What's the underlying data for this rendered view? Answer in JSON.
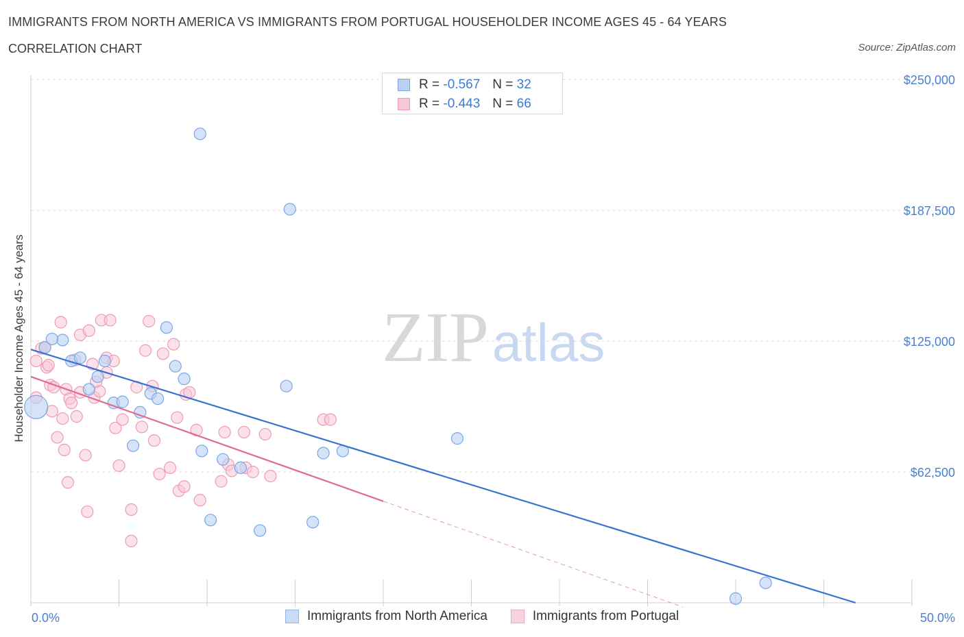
{
  "header": {
    "title": "IMMIGRANTS FROM NORTH AMERICA VS IMMIGRANTS FROM PORTUGAL HOUSEHOLDER INCOME AGES 45 - 64 YEARS",
    "subtitle": "CORRELATION CHART",
    "source": "Source: ZipAtlas.com"
  },
  "watermark": {
    "zip": "ZIP",
    "atlas": "atlas"
  },
  "legend": {
    "series_a": {
      "r_label": "R = ",
      "r_value": "-0.567",
      "n_label": "N = ",
      "n_value": "32"
    },
    "series_b": {
      "r_label": "R = ",
      "r_value": "-0.443",
      "n_label": "N = ",
      "n_value": "66"
    }
  },
  "colors": {
    "series_a_fill": "#b9d0f4",
    "series_a_stroke": "#7aa6e6",
    "series_a_line": "#3572d2",
    "series_b_fill": "#f8c8d8",
    "series_b_stroke": "#ee9ab6",
    "series_b_line": "#e06a92",
    "grid": "#dcdcdc",
    "tick_text": "#4a7fd0"
  },
  "chart_data": {
    "type": "scatter",
    "xlabel": "",
    "ylabel": "Householder Income Ages 45 - 64 years",
    "xlim": [
      0,
      50
    ],
    "ylim": [
      0,
      250000
    ],
    "x_tick_labels": [
      "0.0%",
      "50.0%"
    ],
    "y_ticks": [
      62500,
      125000,
      187500,
      250000
    ],
    "y_tick_labels": [
      "$62,500",
      "$125,000",
      "$187,500",
      "$250,000"
    ],
    "grid": "horizontal dashed",
    "legend_placement": "top-center and bottom",
    "series": [
      {
        "name": "Immigrants from North America",
        "r": -0.567,
        "n": 32,
        "trend": {
          "x": [
            0,
            46.8
          ],
          "y": [
            121000,
            0
          ]
        },
        "points": [
          {
            "x": 0.3,
            "y": 93500,
            "big": true
          },
          {
            "x": 0.8,
            "y": 122000
          },
          {
            "x": 1.8,
            "y": 125500
          },
          {
            "x": 1.2,
            "y": 126000
          },
          {
            "x": 2.3,
            "y": 115500
          },
          {
            "x": 2.8,
            "y": 117000
          },
          {
            "x": 3.3,
            "y": 102000
          },
          {
            "x": 3.8,
            "y": 108000
          },
          {
            "x": 4.2,
            "y": 115500
          },
          {
            "x": 4.7,
            "y": 95500
          },
          {
            "x": 5.2,
            "y": 96000
          },
          {
            "x": 5.8,
            "y": 75000
          },
          {
            "x": 6.2,
            "y": 91000
          },
          {
            "x": 6.8,
            "y": 100000
          },
          {
            "x": 7.2,
            "y": 97500
          },
          {
            "x": 7.7,
            "y": 131500
          },
          {
            "x": 8.2,
            "y": 113000
          },
          {
            "x": 8.7,
            "y": 107000
          },
          {
            "x": 9.6,
            "y": 224000
          },
          {
            "x": 9.7,
            "y": 72500
          },
          {
            "x": 10.2,
            "y": 39500
          },
          {
            "x": 10.9,
            "y": 68500
          },
          {
            "x": 11.9,
            "y": 64500
          },
          {
            "x": 13.0,
            "y": 34500
          },
          {
            "x": 14.5,
            "y": 103500
          },
          {
            "x": 14.7,
            "y": 188000
          },
          {
            "x": 16.0,
            "y": 38500
          },
          {
            "x": 16.6,
            "y": 71500
          },
          {
            "x": 17.7,
            "y": 72500
          },
          {
            "x": 24.2,
            "y": 78500
          },
          {
            "x": 40.0,
            "y": 2000
          },
          {
            "x": 41.7,
            "y": 9500
          }
        ]
      },
      {
        "name": "Immigrants from Portugal",
        "r": -0.443,
        "n": 66,
        "trend": {
          "x": [
            0,
            20.0
          ],
          "y": [
            108000,
            48500
          ]
        },
        "trend_extension": {
          "x": [
            20.0,
            37.0
          ],
          "y": [
            48500,
            -2000
          ]
        },
        "points": [
          {
            "x": 0.3,
            "y": 98000
          },
          {
            "x": 0.3,
            "y": 115500
          },
          {
            "x": 0.6,
            "y": 121500
          },
          {
            "x": 0.8,
            "y": 122000
          },
          {
            "x": 0.9,
            "y": 112500
          },
          {
            "x": 1.0,
            "y": 113500
          },
          {
            "x": 1.1,
            "y": 104000
          },
          {
            "x": 1.3,
            "y": 103000
          },
          {
            "x": 1.2,
            "y": 91500
          },
          {
            "x": 1.5,
            "y": 79000
          },
          {
            "x": 1.7,
            "y": 134000
          },
          {
            "x": 2.0,
            "y": 102000
          },
          {
            "x": 1.8,
            "y": 88000
          },
          {
            "x": 1.9,
            "y": 73000
          },
          {
            "x": 2.1,
            "y": 57500
          },
          {
            "x": 2.2,
            "y": 97500
          },
          {
            "x": 2.3,
            "y": 95500
          },
          {
            "x": 2.5,
            "y": 116000
          },
          {
            "x": 2.6,
            "y": 89000
          },
          {
            "x": 2.8,
            "y": 128000
          },
          {
            "x": 2.8,
            "y": 100500
          },
          {
            "x": 3.1,
            "y": 70500
          },
          {
            "x": 3.2,
            "y": 43500
          },
          {
            "x": 3.3,
            "y": 130000
          },
          {
            "x": 3.5,
            "y": 114000
          },
          {
            "x": 3.6,
            "y": 98000
          },
          {
            "x": 3.7,
            "y": 105500
          },
          {
            "x": 3.9,
            "y": 101000
          },
          {
            "x": 4.0,
            "y": 135000
          },
          {
            "x": 4.3,
            "y": 117000
          },
          {
            "x": 4.3,
            "y": 110000
          },
          {
            "x": 4.5,
            "y": 135000
          },
          {
            "x": 4.7,
            "y": 115500
          },
          {
            "x": 4.8,
            "y": 83500
          },
          {
            "x": 5.0,
            "y": 65500
          },
          {
            "x": 5.2,
            "y": 87500
          },
          {
            "x": 5.7,
            "y": 44500
          },
          {
            "x": 5.7,
            "y": 29500
          },
          {
            "x": 6.0,
            "y": 103000
          },
          {
            "x": 6.3,
            "y": 84000
          },
          {
            "x": 6.5,
            "y": 120500
          },
          {
            "x": 6.7,
            "y": 134500
          },
          {
            "x": 6.9,
            "y": 103500
          },
          {
            "x": 7.0,
            "y": 77500
          },
          {
            "x": 7.3,
            "y": 61500
          },
          {
            "x": 7.5,
            "y": 119000
          },
          {
            "x": 7.9,
            "y": 64500
          },
          {
            "x": 8.1,
            "y": 123500
          },
          {
            "x": 8.3,
            "y": 88500
          },
          {
            "x": 8.4,
            "y": 53500
          },
          {
            "x": 8.7,
            "y": 55500
          },
          {
            "x": 8.8,
            "y": 99500
          },
          {
            "x": 9.0,
            "y": 100500
          },
          {
            "x": 9.4,
            "y": 82500
          },
          {
            "x": 9.6,
            "y": 49000
          },
          {
            "x": 10.8,
            "y": 58000
          },
          {
            "x": 11.0,
            "y": 81500
          },
          {
            "x": 11.2,
            "y": 66000
          },
          {
            "x": 11.4,
            "y": 63000
          },
          {
            "x": 12.1,
            "y": 81500
          },
          {
            "x": 12.2,
            "y": 64500
          },
          {
            "x": 12.6,
            "y": 62500
          },
          {
            "x": 13.3,
            "y": 80500
          },
          {
            "x": 13.6,
            "y": 60500
          },
          {
            "x": 16.6,
            "y": 87500
          },
          {
            "x": 17.0,
            "y": 87500
          }
        ]
      }
    ]
  }
}
